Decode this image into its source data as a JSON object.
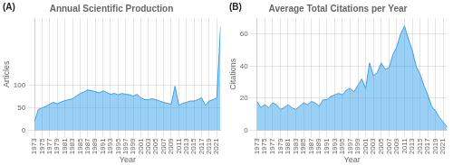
{
  "chart_data": [
    {
      "type": "area",
      "title": "Annual Scientific Production",
      "annotation": "(A)",
      "xlabel": "Year",
      "ylabel": "Articles",
      "x": [
        1973,
        1974,
        1975,
        1976,
        1977,
        1978,
        1979,
        1980,
        1981,
        1982,
        1983,
        1984,
        1985,
        1986,
        1987,
        1988,
        1989,
        1990,
        1991,
        1992,
        1993,
        1994,
        1995,
        1996,
        1997,
        1998,
        1999,
        2000,
        2001,
        2002,
        2003,
        2004,
        2005,
        2006,
        2007,
        2008,
        2009,
        2010,
        2011,
        2012,
        2013,
        2014,
        2015,
        2016,
        2017,
        2018,
        2019,
        2020,
        2021,
        2022
      ],
      "values": [
        20,
        46,
        50,
        53,
        58,
        62,
        59,
        63,
        66,
        68,
        70,
        76,
        82,
        85,
        90,
        88,
        86,
        83,
        88,
        84,
        80,
        82,
        79,
        82,
        80,
        79,
        76,
        80,
        72,
        68,
        68,
        70,
        68,
        65,
        62,
        60,
        58,
        98,
        55,
        60,
        62,
        65,
        65,
        68,
        72,
        55,
        65,
        68,
        72,
        230
      ],
      "xlim": [
        1973,
        2022
      ],
      "xticks": [
        1973,
        1975,
        1977,
        1979,
        1981,
        1983,
        1985,
        1987,
        1989,
        1991,
        1993,
        1995,
        1997,
        1999,
        2001,
        2003,
        2005,
        2007,
        2009,
        2011,
        2013,
        2015,
        2017,
        2019,
        2021
      ],
      "ylim": [
        0,
        250
      ],
      "yticks": [
        0,
        50,
        100
      ],
      "grid": true
    },
    {
      "type": "area",
      "title": "Average Total Citations per Year",
      "annotation": "(B)",
      "xlabel": "Year",
      "ylabel": "Citations",
      "x": [
        1973,
        1974,
        1975,
        1976,
        1977,
        1978,
        1979,
        1980,
        1981,
        1982,
        1983,
        1984,
        1985,
        1986,
        1987,
        1988,
        1989,
        1990,
        1991,
        1992,
        1993,
        1994,
        1995,
        1996,
        1997,
        1998,
        1999,
        2000,
        2001,
        2002,
        2003,
        2004,
        2005,
        2006,
        2007,
        2008,
        2009,
        2010,
        2011,
        2012,
        2013,
        2014,
        2015,
        2016,
        2017,
        2018,
        2019,
        2020,
        2021,
        2022
      ],
      "values": [
        18,
        14,
        16,
        14,
        17,
        16,
        13,
        14,
        16,
        14,
        13,
        15,
        17,
        16,
        18,
        17,
        15,
        19,
        19,
        21,
        22,
        23,
        22,
        25,
        26,
        24,
        28,
        32,
        26,
        42,
        34,
        36,
        42,
        38,
        39,
        47,
        52,
        60,
        65,
        57,
        50,
        40,
        35,
        28,
        22,
        15,
        12,
        8,
        5,
        2
      ],
      "xlim": [
        1973,
        2022
      ],
      "xticks": [
        1973,
        1975,
        1977,
        1979,
        1981,
        1983,
        1985,
        1987,
        1989,
        1991,
        1993,
        1995,
        1997,
        1999,
        2001,
        2003,
        2005,
        2007,
        2009,
        2011,
        2013,
        2015,
        2017,
        2019,
        2021
      ],
      "ylim": [
        0,
        70
      ],
      "yticks": [
        0,
        20,
        40,
        60
      ],
      "grid": true
    }
  ]
}
